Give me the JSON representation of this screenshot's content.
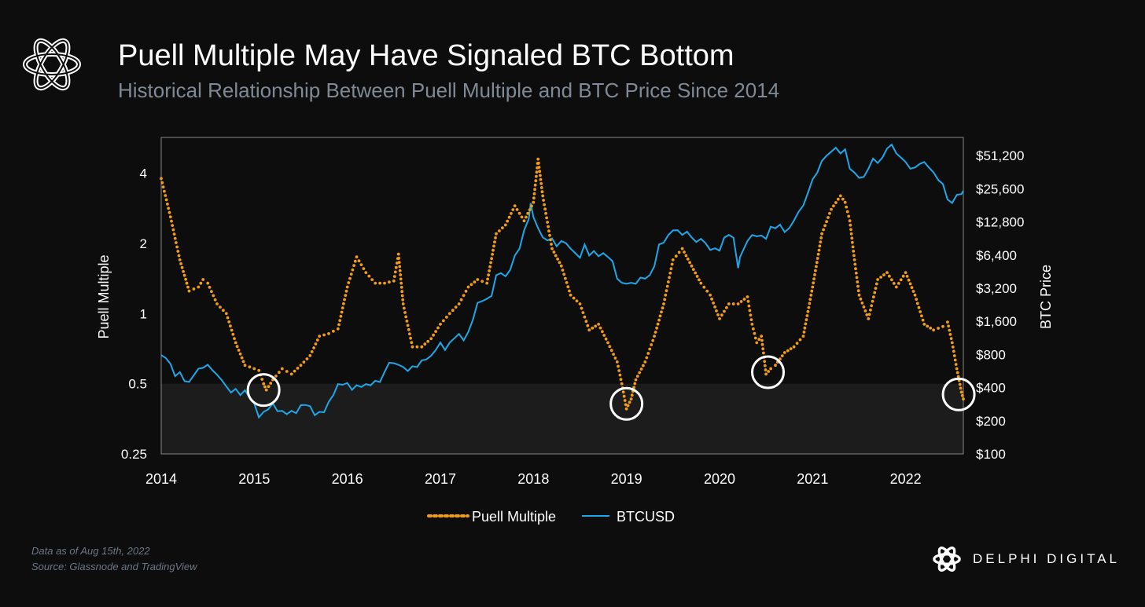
{
  "header": {
    "title": "Puell Multiple May Have Signaled BTC Bottom",
    "subtitle": "Historical Relationship Between Puell Multiple and BTC Price Since 2014"
  },
  "footer": {
    "data_note": "Data as of Aug 15th, 2022",
    "source": "Source: Glassnode and TradingView"
  },
  "brand": {
    "name": "DELPHI DIGITAL",
    "icon": "delphi-knot-icon"
  },
  "colors": {
    "background": "#0d0d0d",
    "puell": "#f39c12",
    "btc": "#1ea7e8",
    "low_zone": "#1c1c1c",
    "circle": "#ffffff",
    "axis": "#888888"
  },
  "chart_data": {
    "type": "line",
    "x_axis": {
      "label": "",
      "ticks": [
        "2014",
        "2015",
        "2016",
        "2017",
        "2018",
        "2019",
        "2020",
        "2021",
        "2022"
      ],
      "range": [
        2014.0,
        2022.62
      ]
    },
    "y_left": {
      "label": "Puell Multiple",
      "scale": "log2",
      "range": [
        0.25,
        5.7
      ],
      "ticks": [
        0.25,
        0.5,
        1,
        2,
        4
      ],
      "tick_labels": [
        "0.25",
        "0.5",
        "1",
        "2",
        "4"
      ]
    },
    "y_right": {
      "label": "BTC Price",
      "scale": "log2",
      "range": [
        100,
        75000
      ],
      "ticks": [
        100,
        200,
        400,
        800,
        1600,
        3200,
        6400,
        12800,
        25600,
        51200
      ],
      "tick_labels": [
        "$100",
        "$200",
        "$400",
        "$800",
        "$1,600",
        "$3,200",
        "$6,400",
        "$12,800",
        "$25,600",
        "$51,200"
      ]
    },
    "shaded_zone": {
      "axis": "left",
      "from": 0.25,
      "to": 0.5
    },
    "legend": {
      "position": "bottom-center",
      "items": [
        "Puell Multiple",
        "BTCUSD"
      ]
    },
    "series": [
      {
        "name": "Puell Multiple",
        "axis": "left",
        "style": "dotted",
        "points": [
          [
            2014.0,
            3.8
          ],
          [
            2014.1,
            2.6
          ],
          [
            2014.2,
            1.7
          ],
          [
            2014.3,
            1.25
          ],
          [
            2014.4,
            1.3
          ],
          [
            2014.45,
            1.4
          ],
          [
            2014.5,
            1.35
          ],
          [
            2014.6,
            1.1
          ],
          [
            2014.7,
            1.0
          ],
          [
            2014.8,
            0.75
          ],
          [
            2014.9,
            0.6
          ],
          [
            2015.0,
            0.58
          ],
          [
            2015.05,
            0.57
          ],
          [
            2015.1,
            0.5
          ],
          [
            2015.13,
            0.47
          ],
          [
            2015.2,
            0.52
          ],
          [
            2015.3,
            0.58
          ],
          [
            2015.4,
            0.55
          ],
          [
            2015.5,
            0.6
          ],
          [
            2015.6,
            0.66
          ],
          [
            2015.7,
            0.8
          ],
          [
            2015.8,
            0.82
          ],
          [
            2015.9,
            0.86
          ],
          [
            2016.0,
            1.3
          ],
          [
            2016.1,
            1.75
          ],
          [
            2016.2,
            1.5
          ],
          [
            2016.3,
            1.35
          ],
          [
            2016.4,
            1.35
          ],
          [
            2016.5,
            1.38
          ],
          [
            2016.55,
            1.8
          ],
          [
            2016.6,
            1.1
          ],
          [
            2016.7,
            0.72
          ],
          [
            2016.8,
            0.72
          ],
          [
            2016.9,
            0.78
          ],
          [
            2017.0,
            0.9
          ],
          [
            2017.1,
            1.0
          ],
          [
            2017.2,
            1.1
          ],
          [
            2017.3,
            1.3
          ],
          [
            2017.4,
            1.4
          ],
          [
            2017.5,
            1.35
          ],
          [
            2017.6,
            2.2
          ],
          [
            2017.7,
            2.4
          ],
          [
            2017.8,
            2.9
          ],
          [
            2017.9,
            2.5
          ],
          [
            2018.0,
            3.0
          ],
          [
            2018.05,
            4.6
          ],
          [
            2018.1,
            3.2
          ],
          [
            2018.2,
            1.9
          ],
          [
            2018.3,
            1.6
          ],
          [
            2018.4,
            1.2
          ],
          [
            2018.5,
            1.1
          ],
          [
            2018.6,
            0.85
          ],
          [
            2018.7,
            0.9
          ],
          [
            2018.8,
            0.75
          ],
          [
            2018.9,
            0.62
          ],
          [
            2018.95,
            0.5
          ],
          [
            2019.0,
            0.39
          ],
          [
            2019.05,
            0.43
          ],
          [
            2019.1,
            0.52
          ],
          [
            2019.2,
            0.62
          ],
          [
            2019.3,
            0.8
          ],
          [
            2019.4,
            1.1
          ],
          [
            2019.5,
            1.7
          ],
          [
            2019.6,
            1.9
          ],
          [
            2019.7,
            1.6
          ],
          [
            2019.8,
            1.35
          ],
          [
            2019.9,
            1.2
          ],
          [
            2020.0,
            0.95
          ],
          [
            2020.1,
            1.1
          ],
          [
            2020.2,
            1.1
          ],
          [
            2020.3,
            1.18
          ],
          [
            2020.35,
            0.9
          ],
          [
            2020.4,
            0.75
          ],
          [
            2020.45,
            0.8
          ],
          [
            2020.5,
            0.55
          ],
          [
            2020.55,
            0.58
          ],
          [
            2020.6,
            0.6
          ],
          [
            2020.7,
            0.68
          ],
          [
            2020.8,
            0.72
          ],
          [
            2020.9,
            0.8
          ],
          [
            2021.0,
            1.3
          ],
          [
            2021.1,
            2.2
          ],
          [
            2021.2,
            2.8
          ],
          [
            2021.3,
            3.2
          ],
          [
            2021.35,
            3.0
          ],
          [
            2021.4,
            2.5
          ],
          [
            2021.45,
            1.7
          ],
          [
            2021.5,
            1.2
          ],
          [
            2021.6,
            0.95
          ],
          [
            2021.7,
            1.4
          ],
          [
            2021.8,
            1.5
          ],
          [
            2021.9,
            1.3
          ],
          [
            2022.0,
            1.5
          ],
          [
            2022.1,
            1.2
          ],
          [
            2022.2,
            0.9
          ],
          [
            2022.3,
            0.85
          ],
          [
            2022.4,
            0.88
          ],
          [
            2022.45,
            0.92
          ],
          [
            2022.5,
            0.75
          ],
          [
            2022.55,
            0.58
          ],
          [
            2022.6,
            0.46
          ],
          [
            2022.62,
            0.43
          ]
        ]
      },
      {
        "name": "BTCUSD",
        "axis": "right",
        "style": "solid",
        "points": [
          [
            2014.0,
            770
          ],
          [
            2014.05,
            760
          ],
          [
            2014.1,
            640
          ],
          [
            2014.15,
            520
          ],
          [
            2014.2,
            540
          ],
          [
            2014.25,
            470
          ],
          [
            2014.3,
            440
          ],
          [
            2014.35,
            530
          ],
          [
            2014.4,
            580
          ],
          [
            2014.45,
            620
          ],
          [
            2014.5,
            630
          ],
          [
            2014.55,
            590
          ],
          [
            2014.6,
            510
          ],
          [
            2014.65,
            480
          ],
          [
            2014.7,
            400
          ],
          [
            2014.75,
            370
          ],
          [
            2014.8,
            380
          ],
          [
            2014.85,
            350
          ],
          [
            2014.9,
            370
          ],
          [
            2014.95,
            330
          ],
          [
            2015.0,
            280
          ],
          [
            2015.05,
            220
          ],
          [
            2015.1,
            235
          ],
          [
            2015.15,
            260
          ],
          [
            2015.2,
            280
          ],
          [
            2015.25,
            250
          ],
          [
            2015.3,
            240
          ],
          [
            2015.35,
            235
          ],
          [
            2015.4,
            240
          ],
          [
            2015.45,
            240
          ],
          [
            2015.5,
            270
          ],
          [
            2015.55,
            285
          ],
          [
            2015.6,
            265
          ],
          [
            2015.65,
            230
          ],
          [
            2015.7,
            235
          ],
          [
            2015.75,
            245
          ],
          [
            2015.8,
            290
          ],
          [
            2015.85,
            350
          ],
          [
            2015.9,
            420
          ],
          [
            2015.95,
            435
          ],
          [
            2016.0,
            430
          ],
          [
            2016.05,
            390
          ],
          [
            2016.1,
            410
          ],
          [
            2016.15,
            415
          ],
          [
            2016.2,
            420
          ],
          [
            2016.25,
            430
          ],
          [
            2016.3,
            450
          ],
          [
            2016.35,
            460
          ],
          [
            2016.4,
            540
          ],
          [
            2016.45,
            690
          ],
          [
            2016.5,
            650
          ],
          [
            2016.55,
            660
          ],
          [
            2016.6,
            600
          ],
          [
            2016.65,
            580
          ],
          [
            2016.7,
            610
          ],
          [
            2016.75,
            630
          ],
          [
            2016.8,
            690
          ],
          [
            2016.85,
            740
          ],
          [
            2016.9,
            760
          ],
          [
            2016.95,
            900
          ],
          [
            2017.0,
            1000
          ],
          [
            2017.05,
            900
          ],
          [
            2017.1,
            1000
          ],
          [
            2017.15,
            1150
          ],
          [
            2017.2,
            1200
          ],
          [
            2017.25,
            1100
          ],
          [
            2017.3,
            1250
          ],
          [
            2017.35,
            1700
          ],
          [
            2017.4,
            2300
          ],
          [
            2017.45,
            2500
          ],
          [
            2017.5,
            2500
          ],
          [
            2017.55,
            2800
          ],
          [
            2017.6,
            4100
          ],
          [
            2017.65,
            4500
          ],
          [
            2017.7,
            4000
          ],
          [
            2017.75,
            4800
          ],
          [
            2017.8,
            6200
          ],
          [
            2017.85,
            7500
          ],
          [
            2017.9,
            10500
          ],
          [
            2017.95,
            14000
          ],
          [
            2017.97,
            18500
          ],
          [
            2018.0,
            14500
          ],
          [
            2018.05,
            11000
          ],
          [
            2018.1,
            9500
          ],
          [
            2018.15,
            8500
          ],
          [
            2018.2,
            9300
          ],
          [
            2018.25,
            7500
          ],
          [
            2018.3,
            8800
          ],
          [
            2018.35,
            8000
          ],
          [
            2018.4,
            7500
          ],
          [
            2018.45,
            6500
          ],
          [
            2018.5,
            6200
          ],
          [
            2018.55,
            7800
          ],
          [
            2018.6,
            6500
          ],
          [
            2018.65,
            6800
          ],
          [
            2018.7,
            6400
          ],
          [
            2018.75,
            6500
          ],
          [
            2018.8,
            6300
          ],
          [
            2018.85,
            5500
          ],
          [
            2018.9,
            4000
          ],
          [
            2018.95,
            3500
          ],
          [
            2019.0,
            3600
          ],
          [
            2019.05,
            3500
          ],
          [
            2019.1,
            3600
          ],
          [
            2019.15,
            3900
          ],
          [
            2019.2,
            4000
          ],
          [
            2019.25,
            4100
          ],
          [
            2019.3,
            5200
          ],
          [
            2019.35,
            7800
          ],
          [
            2019.4,
            8500
          ],
          [
            2019.45,
            9500
          ],
          [
            2019.5,
            11000
          ],
          [
            2019.55,
            10500
          ],
          [
            2019.6,
            10000
          ],
          [
            2019.65,
            10200
          ],
          [
            2019.7,
            9500
          ],
          [
            2019.75,
            8200
          ],
          [
            2019.8,
            9200
          ],
          [
            2019.85,
            8000
          ],
          [
            2019.9,
            7300
          ],
          [
            2019.95,
            7200
          ],
          [
            2020.0,
            7200
          ],
          [
            2020.05,
            9000
          ],
          [
            2020.1,
            10000
          ],
          [
            2020.15,
            9000
          ],
          [
            2020.2,
            5000
          ],
          [
            2020.22,
            6000
          ],
          [
            2020.3,
            8800
          ],
          [
            2020.35,
            9500
          ],
          [
            2020.4,
            9700
          ],
          [
            2020.45,
            9400
          ],
          [
            2020.5,
            9200
          ],
          [
            2020.55,
            11300
          ],
          [
            2020.6,
            11500
          ],
          [
            2020.65,
            11800
          ],
          [
            2020.7,
            10600
          ],
          [
            2020.75,
            11000
          ],
          [
            2020.8,
            13500
          ],
          [
            2020.85,
            15500
          ],
          [
            2020.9,
            18500
          ],
          [
            2020.95,
            23000
          ],
          [
            2021.0,
            32000
          ],
          [
            2021.05,
            35000
          ],
          [
            2021.1,
            47000
          ],
          [
            2021.15,
            50000
          ],
          [
            2021.2,
            57000
          ],
          [
            2021.25,
            59000
          ],
          [
            2021.3,
            55000
          ],
          [
            2021.35,
            57000
          ],
          [
            2021.4,
            40000
          ],
          [
            2021.45,
            35000
          ],
          [
            2021.5,
            33000
          ],
          [
            2021.55,
            32000
          ],
          [
            2021.6,
            40000
          ],
          [
            2021.65,
            47000
          ],
          [
            2021.7,
            45000
          ],
          [
            2021.75,
            48000
          ],
          [
            2021.8,
            61000
          ],
          [
            2021.85,
            63000
          ],
          [
            2021.9,
            55000
          ],
          [
            2021.95,
            48000
          ],
          [
            2022.0,
            46000
          ],
          [
            2022.05,
            38000
          ],
          [
            2022.1,
            41000
          ],
          [
            2022.15,
            42000
          ],
          [
            2022.2,
            46000
          ],
          [
            2022.25,
            39000
          ],
          [
            2022.3,
            37000
          ],
          [
            2022.35,
            30000
          ],
          [
            2022.4,
            29000
          ],
          [
            2022.45,
            20000
          ],
          [
            2022.5,
            19500
          ],
          [
            2022.55,
            22000
          ],
          [
            2022.6,
            23500
          ],
          [
            2022.62,
            24000
          ]
        ]
      }
    ],
    "annotations": [
      {
        "type": "circle",
        "x": 2015.1,
        "y": 0.47,
        "axis": "left"
      },
      {
        "type": "circle",
        "x": 2019.0,
        "y": 0.41,
        "axis": "left"
      },
      {
        "type": "circle",
        "x": 2020.52,
        "y": 0.56,
        "axis": "left"
      },
      {
        "type": "circle",
        "x": 2022.57,
        "y": 0.45,
        "axis": "left"
      }
    ]
  }
}
